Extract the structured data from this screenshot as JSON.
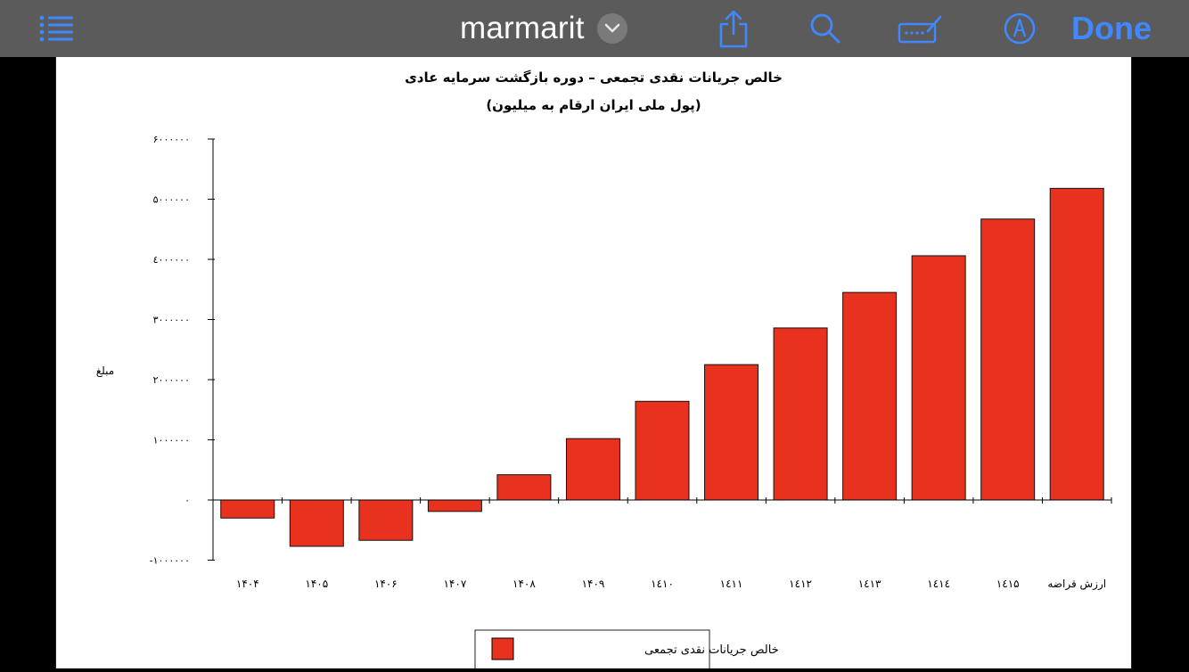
{
  "toolbar": {
    "title": "marmarit",
    "done_label": "Done",
    "icons": [
      "list-icon",
      "chevron-down-icon",
      "share-icon",
      "search-icon",
      "keyboard-edit-icon",
      "markup-pen-icon"
    ],
    "accent": "#3f88ff",
    "background": "#5b5b5b"
  },
  "chart_data": {
    "type": "bar",
    "title": "خالص جریانات نقدی تجمعی – دوره بازگشت سرمایه عادی",
    "subtitle": "(پول ملی ایران ارقام به میلیون)",
    "ylabel": "مبلغ",
    "xlabel": "",
    "categories": [
      "۱۴۰۴",
      "۱۴۰۵",
      "۱۴۰۶",
      "۱۴۰۷",
      "۱۴۰۸",
      "۱۴۰۹",
      "۱٤۱۰",
      "۱٤۱۱",
      "۱٤۱۲",
      "۱٤۱۳",
      "۱٤۱٤",
      "۱٤۱۵",
      "ارزش قراضه"
    ],
    "series": [
      {
        "name": "خالص جریانات نقدی تجمعی",
        "values": [
          -300000,
          -770000,
          -670000,
          -190000,
          420000,
          1020000,
          1640000,
          2250000,
          2860000,
          3450000,
          4060000,
          4670000,
          5180000
        ]
      }
    ],
    "yticks": [
      -1000000,
      0,
      1000000,
      2000000,
      3000000,
      4000000,
      5000000,
      6000000
    ],
    "ytick_labels": [
      "-۱۰۰۰۰۰۰",
      "۰",
      "۱۰۰۰۰۰۰",
      "۲۰۰۰۰۰۰",
      "۳۰۰۰۰۰۰",
      "٤۰۰۰۰۰۰",
      "۵۰۰۰۰۰۰",
      "۶۰۰۰۰۰۰"
    ],
    "ylim": [
      -1000000,
      6000000
    ],
    "grid": false,
    "legend": "bottom",
    "bar_color": "#e8321e"
  }
}
